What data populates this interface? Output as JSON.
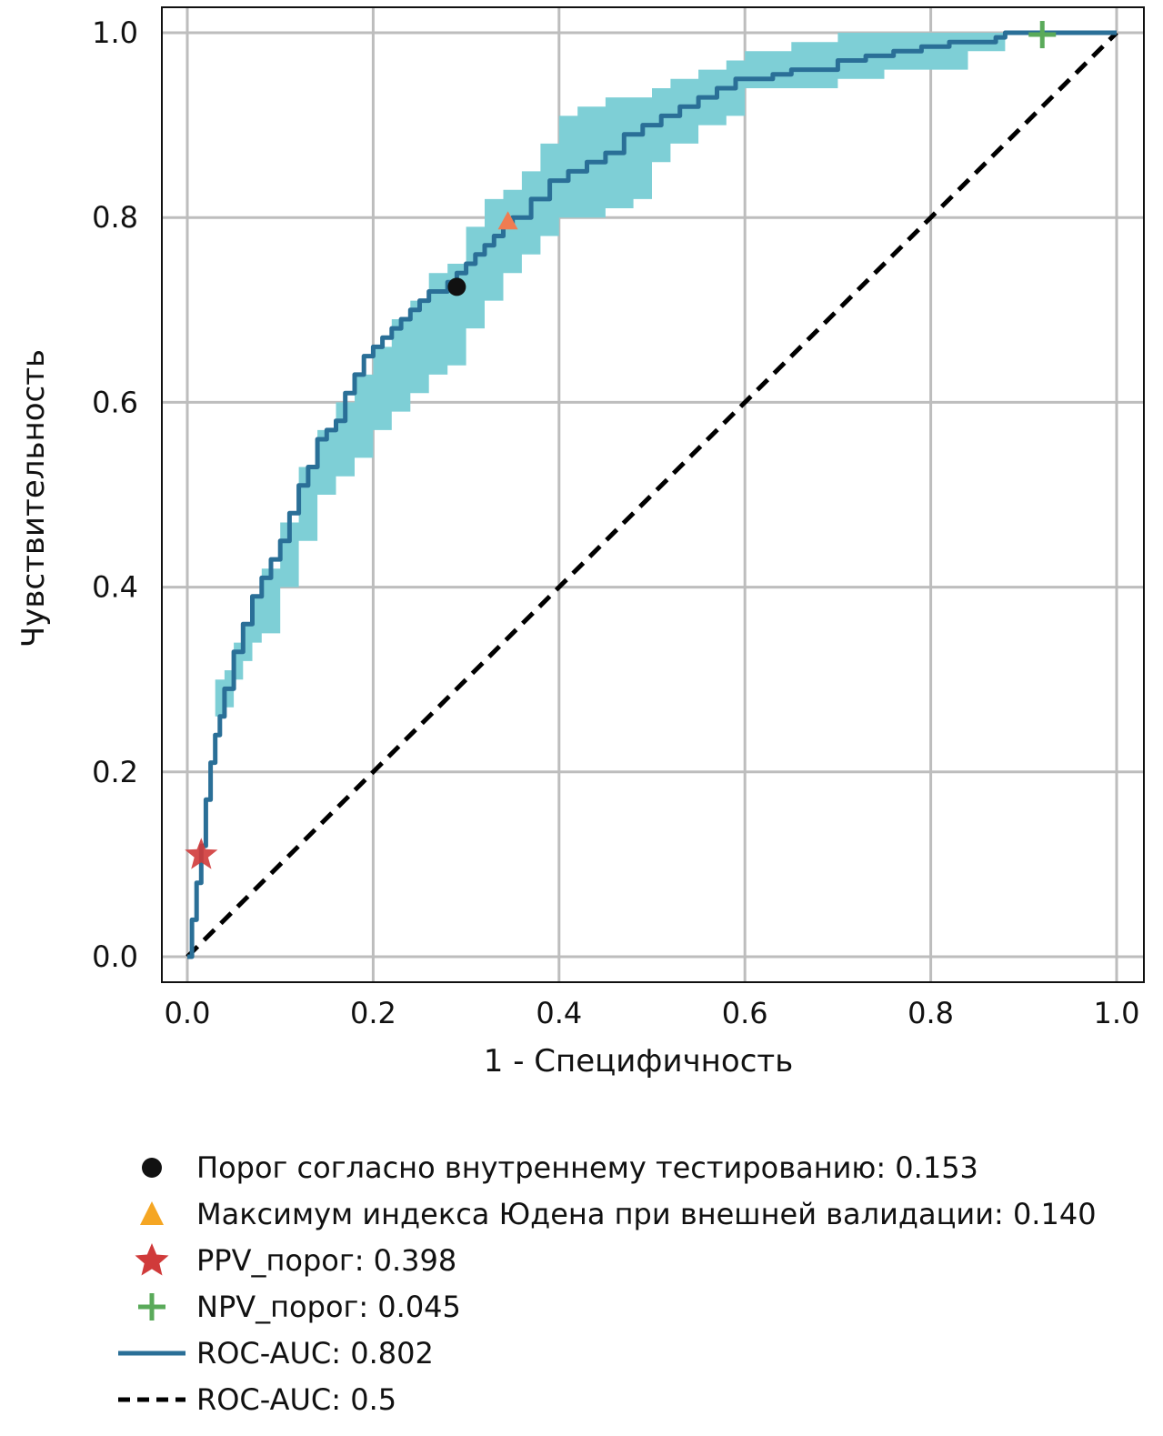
{
  "chart_data": {
    "type": "line",
    "xlabel": "1 - Специфичность",
    "ylabel": "Чувствительность",
    "xlim": [
      0.0,
      1.0
    ],
    "ylim": [
      0.0,
      1.0
    ],
    "xticks": [
      "0.0",
      "0.2",
      "0.4",
      "0.6",
      "0.8",
      "1.0"
    ],
    "yticks": [
      "0.0",
      "0.2",
      "0.4",
      "0.6",
      "0.8",
      "1.0"
    ],
    "grid": true,
    "legend_position": "below",
    "colors": {
      "roc": "#2a6f97",
      "ci_band": "#7ecfd6",
      "diagonal": "#000000",
      "internal_threshold": "#111111",
      "youden_legend": "#f5a623",
      "youden_marker": "#f07c52",
      "ppv": "#d03a3a",
      "npv": "#5aaa5a"
    },
    "series": [
      {
        "name": "ROC-AUC: 0.802",
        "x": [
          0.0,
          0.005,
          0.01,
          0.015,
          0.02,
          0.025,
          0.03,
          0.035,
          0.04,
          0.05,
          0.06,
          0.07,
          0.08,
          0.09,
          0.1,
          0.11,
          0.12,
          0.13,
          0.14,
          0.15,
          0.16,
          0.17,
          0.18,
          0.19,
          0.2,
          0.21,
          0.22,
          0.23,
          0.24,
          0.25,
          0.26,
          0.27,
          0.28,
          0.29,
          0.3,
          0.31,
          0.32,
          0.33,
          0.34,
          0.35,
          0.37,
          0.39,
          0.41,
          0.43,
          0.45,
          0.47,
          0.49,
          0.51,
          0.53,
          0.55,
          0.57,
          0.59,
          0.61,
          0.63,
          0.65,
          0.67,
          0.7,
          0.73,
          0.76,
          0.79,
          0.82,
          0.85,
          0.87,
          0.88,
          0.9,
          0.92,
          0.95,
          1.0
        ],
        "y": [
          0.0,
          0.04,
          0.08,
          0.12,
          0.17,
          0.21,
          0.24,
          0.26,
          0.29,
          0.33,
          0.36,
          0.39,
          0.41,
          0.43,
          0.45,
          0.48,
          0.51,
          0.53,
          0.56,
          0.57,
          0.58,
          0.61,
          0.63,
          0.65,
          0.66,
          0.67,
          0.68,
          0.69,
          0.7,
          0.71,
          0.72,
          0.72,
          0.73,
          0.74,
          0.75,
          0.76,
          0.77,
          0.78,
          0.79,
          0.8,
          0.82,
          0.84,
          0.85,
          0.86,
          0.87,
          0.89,
          0.9,
          0.91,
          0.92,
          0.93,
          0.94,
          0.95,
          0.95,
          0.955,
          0.96,
          0.96,
          0.97,
          0.975,
          0.98,
          0.985,
          0.99,
          0.99,
          0.995,
          1.0,
          1.0,
          1.0,
          1.0,
          1.0
        ]
      },
      {
        "name": "ROC-AUC: 0.5",
        "x": [
          0.0,
          1.0
        ],
        "y": [
          0.0,
          1.0
        ]
      }
    ],
    "confidence_band": {
      "x": [
        0.03,
        0.04,
        0.05,
        0.06,
        0.07,
        0.08,
        0.1,
        0.12,
        0.14,
        0.16,
        0.18,
        0.2,
        0.22,
        0.24,
        0.26,
        0.28,
        0.3,
        0.32,
        0.34,
        0.36,
        0.38,
        0.4,
        0.42,
        0.45,
        0.48,
        0.5,
        0.52,
        0.55,
        0.58,
        0.6,
        0.65,
        0.7,
        0.75,
        0.8,
        0.84,
        0.88
      ],
      "lower": [
        0.26,
        0.27,
        0.3,
        0.32,
        0.34,
        0.35,
        0.4,
        0.45,
        0.5,
        0.52,
        0.54,
        0.57,
        0.59,
        0.61,
        0.63,
        0.64,
        0.68,
        0.71,
        0.74,
        0.76,
        0.78,
        0.8,
        0.8,
        0.81,
        0.82,
        0.86,
        0.88,
        0.9,
        0.91,
        0.94,
        0.94,
        0.95,
        0.96,
        0.96,
        0.98,
        1.0
      ],
      "upper": [
        0.3,
        0.31,
        0.34,
        0.36,
        0.39,
        0.42,
        0.47,
        0.53,
        0.57,
        0.6,
        0.63,
        0.66,
        0.69,
        0.71,
        0.74,
        0.75,
        0.79,
        0.82,
        0.83,
        0.85,
        0.88,
        0.91,
        0.92,
        0.93,
        0.93,
        0.94,
        0.95,
        0.96,
        0.97,
        0.98,
        0.99,
        1.0,
        1.0,
        1.0,
        1.0,
        1.0
      ]
    },
    "markers": [
      {
        "name": "Порог согласно внутреннему тестированию: 0.153",
        "shape": "circle",
        "x": 0.29,
        "y": 0.725
      },
      {
        "name": "Максимум индекса Юдена при внешней валидации: 0.140",
        "shape": "triangle",
        "x": 0.345,
        "y": 0.795
      },
      {
        "name": "PPV_порог: 0.398",
        "shape": "star",
        "x": 0.015,
        "y": 0.11
      },
      {
        "name": "NPV_порог: 0.045",
        "shape": "plus",
        "x": 0.92,
        "y": 0.998
      }
    ]
  },
  "legend": {
    "items": [
      {
        "key": "circle",
        "label": "Порог согласно внутреннему тестированию: 0.153"
      },
      {
        "key": "triangle",
        "label": "Максимум индекса Юдена при внешней валидации: 0.140"
      },
      {
        "key": "star",
        "label": "PPV_порог: 0.398"
      },
      {
        "key": "plus",
        "label": "NPV_порог: 0.045"
      },
      {
        "key": "solid",
        "label": "ROC-AUC: 0.802"
      },
      {
        "key": "dashed",
        "label": "ROC-AUC: 0.5"
      }
    ]
  }
}
